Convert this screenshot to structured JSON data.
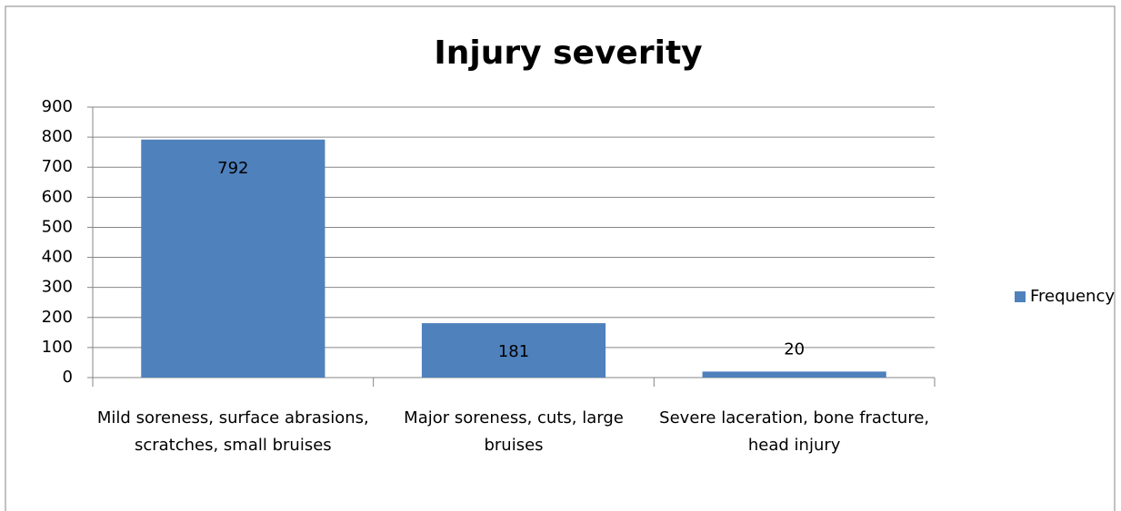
{
  "chart_data": {
    "type": "bar",
    "title": "Injury severity",
    "categories": [
      "Mild soreness, surface abrasions, scratches, small bruises",
      "Major soreness, cuts, large bruises",
      "Severe laceration, bone fracture, head injury"
    ],
    "series": [
      {
        "name": "Frequency",
        "color": "#4f81bd",
        "values": [
          792,
          181,
          20
        ]
      }
    ],
    "ylim": [
      0,
      900
    ],
    "yticks": [
      0,
      100,
      200,
      300,
      400,
      500,
      600,
      700,
      800,
      900
    ],
    "grid": true,
    "legend": "right"
  }
}
